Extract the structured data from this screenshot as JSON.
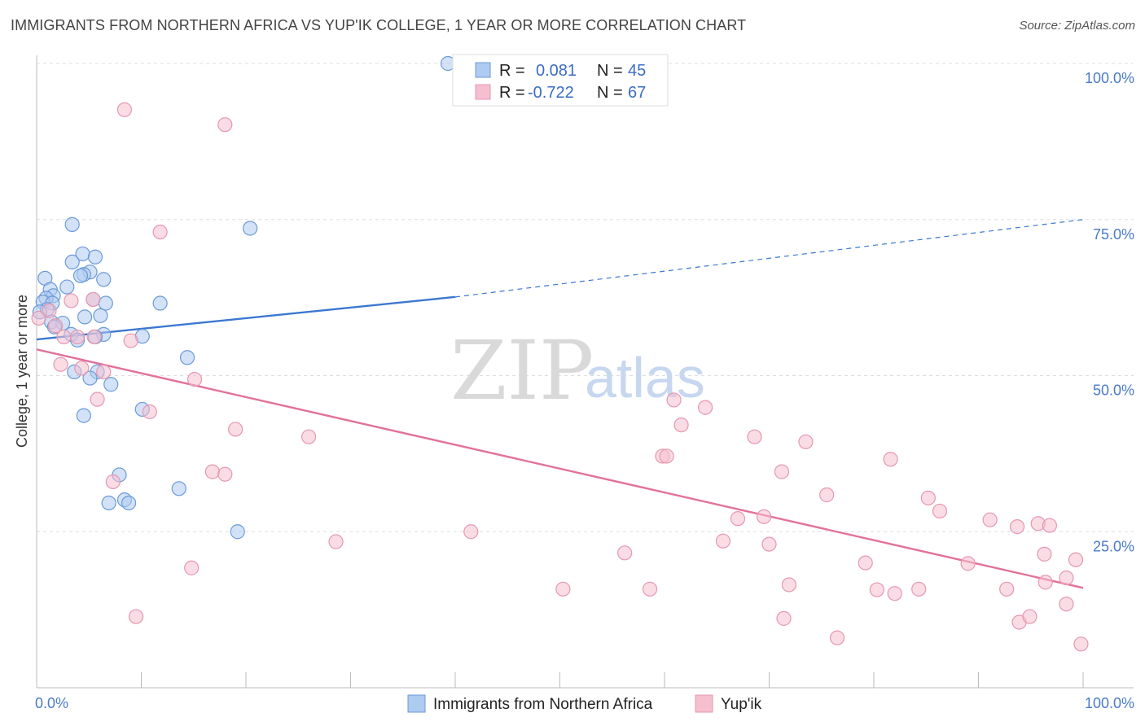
{
  "header": {
    "title": "IMMIGRANTS FROM NORTHERN AFRICA VS YUP'IK COLLEGE, 1 YEAR OR MORE CORRELATION CHART",
    "source": "Source: ZipAtlas.com"
  },
  "watermark": {
    "zip": "ZIP",
    "atlas": "atlas"
  },
  "colors": {
    "blue_fill": "#aecbf0",
    "blue_stroke": "#6b9ad8",
    "blue_line": "#3b78d0",
    "pink_fill": "#f6bfd0",
    "pink_stroke": "#e597b1",
    "pink_line": "#e2719a",
    "tick_text": "#4a7bc8",
    "grid": "#dddddd"
  },
  "legend": {
    "series": [
      {
        "r_label": "R =",
        "r_value": "0.081",
        "n_label": "N =",
        "n_value": "45"
      },
      {
        "r_label": "R =",
        "r_value": "-0.722",
        "n_label": "N =",
        "n_value": "67"
      }
    ]
  },
  "chart_data": {
    "type": "scatter",
    "title": "IMMIGRANTS FROM NORTHERN AFRICA VS YUP'IK COLLEGE, 1 YEAR OR MORE CORRELATION CHART",
    "xlabel": "",
    "ylabel": "College, 1 year or more",
    "xlim": [
      0,
      100
    ],
    "ylim": [
      0,
      100
    ],
    "x_tick_labels": [
      {
        "value": 0,
        "label": "0.0%"
      },
      {
        "value": 100,
        "label": "100.0%"
      }
    ],
    "y_tick_labels": [
      {
        "value": 25,
        "label": "25.0%"
      },
      {
        "value": 50,
        "label": "50.0%"
      },
      {
        "value": 75,
        "label": "75.0%"
      },
      {
        "value": 100,
        "label": "100.0%"
      }
    ],
    "x_minor_ticks": [
      0,
      10,
      20,
      30,
      40,
      50,
      60,
      70,
      80,
      90,
      100
    ],
    "grid_y": [
      25,
      50,
      75,
      100
    ],
    "series": [
      {
        "name": "Immigrants from Northern Africa",
        "color": "blue",
        "points": [
          [
            39.3,
            100.0
          ],
          [
            3.4,
            74.2
          ],
          [
            20.4,
            73.6
          ],
          [
            4.4,
            69.5
          ],
          [
            5.6,
            69.0
          ],
          [
            3.4,
            68.2
          ],
          [
            5.1,
            66.6
          ],
          [
            4.5,
            66.2
          ],
          [
            4.2,
            66.0
          ],
          [
            0.8,
            65.6
          ],
          [
            6.4,
            65.4
          ],
          [
            2.9,
            64.2
          ],
          [
            1.3,
            63.8
          ],
          [
            1.6,
            62.8
          ],
          [
            0.9,
            62.4
          ],
          [
            5.4,
            62.2
          ],
          [
            0.6,
            61.8
          ],
          [
            1.5,
            61.6
          ],
          [
            6.6,
            61.6
          ],
          [
            11.8,
            61.6
          ],
          [
            1.0,
            60.6
          ],
          [
            0.3,
            60.2
          ],
          [
            6.1,
            59.6
          ],
          [
            4.6,
            59.4
          ],
          [
            1.4,
            58.6
          ],
          [
            2.5,
            58.4
          ],
          [
            1.7,
            57.8
          ],
          [
            3.3,
            56.6
          ],
          [
            6.4,
            56.6
          ],
          [
            5.6,
            56.2
          ],
          [
            10.1,
            56.3
          ],
          [
            3.9,
            55.7
          ],
          [
            14.4,
            52.9
          ],
          [
            3.6,
            50.6
          ],
          [
            5.8,
            50.6
          ],
          [
            5.1,
            49.6
          ],
          [
            7.1,
            48.6
          ],
          [
            10.1,
            44.6
          ],
          [
            4.5,
            43.6
          ],
          [
            7.9,
            34.1
          ],
          [
            13.6,
            31.9
          ],
          [
            8.4,
            30.1
          ],
          [
            6.9,
            29.6
          ],
          [
            8.8,
            29.6
          ],
          [
            19.2,
            25.0
          ]
        ],
        "trend": {
          "x0": 0,
          "y0": 55.8,
          "x1": 40,
          "y1": 62.6,
          "dashed_to_x": 100,
          "dashed_to_y": 75.0
        }
      },
      {
        "name": "Yup'ik",
        "color": "pink",
        "points": [
          [
            8.4,
            92.6
          ],
          [
            18.0,
            90.2
          ],
          [
            11.8,
            73.0
          ],
          [
            3.3,
            62.0
          ],
          [
            5.4,
            62.2
          ],
          [
            1.2,
            60.4
          ],
          [
            0.2,
            59.2
          ],
          [
            1.8,
            58.0
          ],
          [
            2.6,
            56.2
          ],
          [
            3.9,
            56.2
          ],
          [
            5.5,
            56.2
          ],
          [
            9.0,
            55.6
          ],
          [
            2.3,
            51.8
          ],
          [
            4.3,
            51.2
          ],
          [
            6.4,
            50.6
          ],
          [
            15.1,
            49.4
          ],
          [
            5.8,
            46.2
          ],
          [
            10.8,
            44.2
          ],
          [
            19.0,
            41.4
          ],
          [
            26.0,
            40.2
          ],
          [
            16.8,
            34.6
          ],
          [
            18.0,
            34.2
          ],
          [
            7.3,
            33.0
          ],
          [
            14.8,
            19.2
          ],
          [
            9.5,
            11.4
          ],
          [
            28.6,
            23.4
          ],
          [
            41.5,
            25.0
          ],
          [
            60.9,
            46.1
          ],
          [
            63.9,
            44.9
          ],
          [
            61.6,
            42.1
          ],
          [
            59.8,
            37.1
          ],
          [
            60.2,
            37.1
          ],
          [
            68.6,
            40.2
          ],
          [
            73.5,
            39.4
          ],
          [
            71.2,
            34.6
          ],
          [
            75.5,
            30.9
          ],
          [
            81.6,
            36.6
          ],
          [
            71.9,
            16.5
          ],
          [
            69.5,
            27.4
          ],
          [
            65.6,
            23.5
          ],
          [
            70.0,
            23.0
          ],
          [
            76.5,
            8.0
          ],
          [
            79.2,
            20.0
          ],
          [
            80.3,
            15.7
          ],
          [
            82.0,
            15.1
          ],
          [
            84.3,
            15.8
          ],
          [
            85.2,
            30.4
          ],
          [
            86.3,
            28.3
          ],
          [
            89.0,
            19.9
          ],
          [
            91.1,
            26.9
          ],
          [
            93.7,
            25.8
          ],
          [
            92.7,
            15.8
          ],
          [
            95.7,
            26.3
          ],
          [
            96.8,
            26.0
          ],
          [
            96.3,
            21.4
          ],
          [
            96.4,
            16.9
          ],
          [
            98.4,
            17.6
          ],
          [
            98.4,
            13.4
          ],
          [
            99.3,
            20.5
          ],
          [
            93.9,
            10.5
          ],
          [
            94.9,
            11.4
          ],
          [
            99.8,
            7.0
          ],
          [
            71.4,
            11.1
          ],
          [
            56.2,
            21.6
          ],
          [
            50.3,
            15.8
          ],
          [
            58.6,
            15.8
          ],
          [
            67.0,
            27.1
          ]
        ],
        "trend": {
          "x0": 0,
          "y0": 54.2,
          "x1": 100,
          "y1": 16.0
        }
      }
    ],
    "bottom_legend": [
      "Immigrants from Northern Africa",
      "Yup'ik"
    ],
    "legend_placement": "top-center"
  }
}
